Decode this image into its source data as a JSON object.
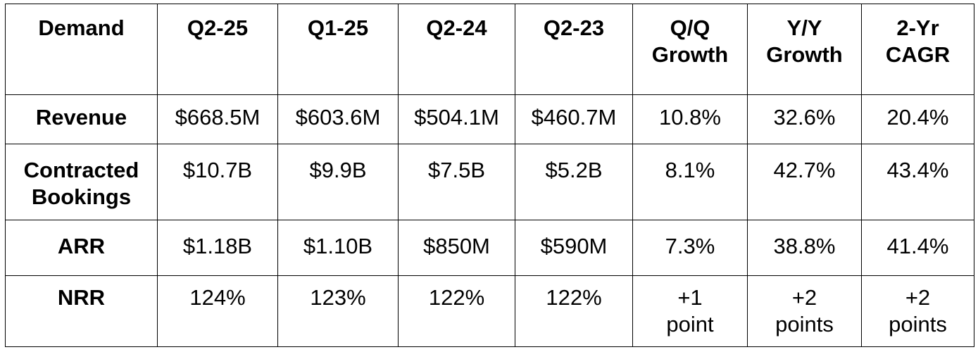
{
  "table": {
    "headers": [
      "Demand",
      "Q2-25",
      "Q1-25",
      "Q2-24",
      "Q2-23",
      "Q/Q\nGrowth",
      "Y/Y\nGrowth",
      "2-Yr\nCAGR"
    ],
    "rows": [
      {
        "label": "Revenue",
        "cells": [
          "$668.5M",
          "$603.6M",
          "$504.1M",
          "$460.7M",
          "10.8%",
          "32.6%",
          "20.4%"
        ]
      },
      {
        "label": "Contracted\nBookings",
        "cells": [
          "$10.7B",
          "$9.9B",
          "$7.5B",
          "$5.2B",
          "8.1%",
          "42.7%",
          "43.4%"
        ]
      },
      {
        "label": "ARR",
        "cells": [
          "$1.18B",
          "$1.10B",
          "$850M",
          "$590M",
          "7.3%",
          "38.8%",
          "41.4%"
        ]
      },
      {
        "label": "NRR",
        "cells": [
          "124%",
          "123%",
          "122%",
          "122%",
          "+1\npoint",
          "+2\npoints",
          "+2\npoints"
        ]
      }
    ]
  }
}
